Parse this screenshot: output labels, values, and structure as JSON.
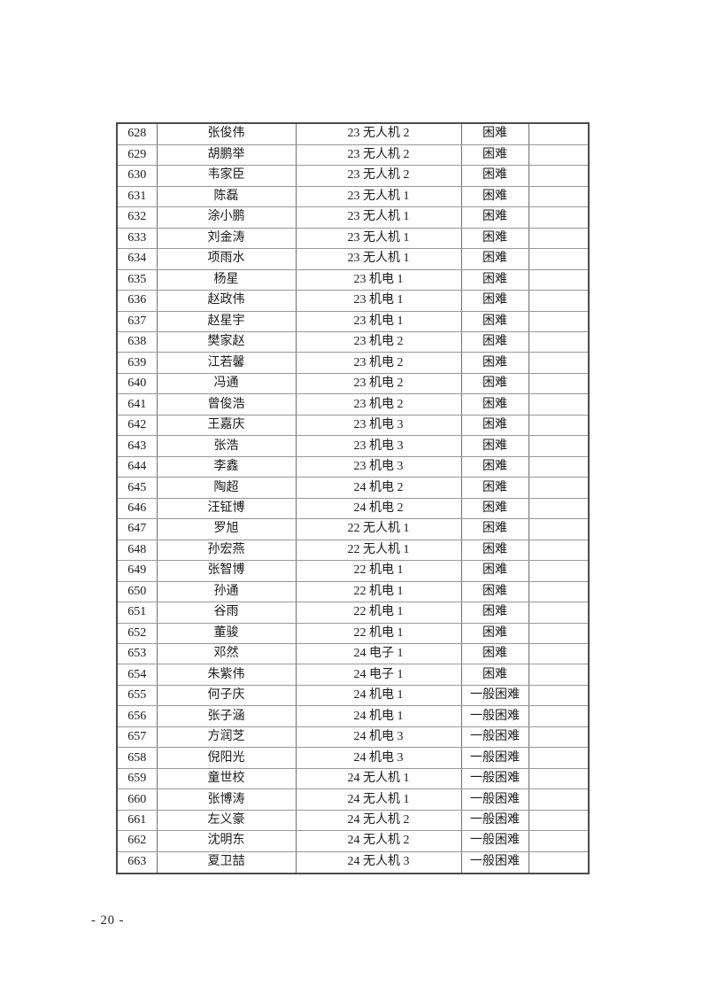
{
  "page": {
    "page_number": "- 20 -"
  },
  "table": {
    "rows": [
      {
        "no": "628",
        "name": "张俊伟",
        "class": "23 无人机 2",
        "level": "困难",
        "note": ""
      },
      {
        "no": "629",
        "name": "胡鹏举",
        "class": "23 无人机 2",
        "level": "困难",
        "note": ""
      },
      {
        "no": "630",
        "name": "韦家臣",
        "class": "23 无人机 2",
        "level": "困难",
        "note": ""
      },
      {
        "no": "631",
        "name": "陈磊",
        "class": "23 无人机 1",
        "level": "困难",
        "note": ""
      },
      {
        "no": "632",
        "name": "涂小鹏",
        "class": "23 无人机 1",
        "level": "困难",
        "note": ""
      },
      {
        "no": "633",
        "name": "刘金涛",
        "class": "23 无人机 1",
        "level": "困难",
        "note": ""
      },
      {
        "no": "634",
        "name": "项雨水",
        "class": "23 无人机 1",
        "level": "困难",
        "note": ""
      },
      {
        "no": "635",
        "name": "杨星",
        "class": "23 机电 1",
        "level": "困难",
        "note": ""
      },
      {
        "no": "636",
        "name": "赵政伟",
        "class": "23 机电 1",
        "level": "困难",
        "note": ""
      },
      {
        "no": "637",
        "name": "赵星宇",
        "class": "23 机电 1",
        "level": "困难",
        "note": ""
      },
      {
        "no": "638",
        "name": "樊家赵",
        "class": "23 机电 2",
        "level": "困难",
        "note": ""
      },
      {
        "no": "639",
        "name": "江若馨",
        "class": "23 机电 2",
        "level": "困难",
        "note": ""
      },
      {
        "no": "640",
        "name": "冯通",
        "class": "23 机电 2",
        "level": "困难",
        "note": ""
      },
      {
        "no": "641",
        "name": "曾俊浩",
        "class": "23 机电 2",
        "level": "困难",
        "note": ""
      },
      {
        "no": "642",
        "name": "王嘉庆",
        "class": "23 机电 3",
        "level": "困难",
        "note": ""
      },
      {
        "no": "643",
        "name": "张浩",
        "class": "23 机电 3",
        "level": "困难",
        "note": ""
      },
      {
        "no": "644",
        "name": "李鑫",
        "class": "23 机电 3",
        "level": "困难",
        "note": ""
      },
      {
        "no": "645",
        "name": "陶超",
        "class": "24 机电 2",
        "level": "困难",
        "note": ""
      },
      {
        "no": "646",
        "name": "汪钲博",
        "class": "24 机电 2",
        "level": "困难",
        "note": ""
      },
      {
        "no": "647",
        "name": "罗旭",
        "class": "22 无人机 1",
        "level": "困难",
        "note": ""
      },
      {
        "no": "648",
        "name": "孙宏燕",
        "class": "22 无人机 1",
        "level": "困难",
        "note": ""
      },
      {
        "no": "649",
        "name": "张智博",
        "class": "22 机电 1",
        "level": "困难",
        "note": ""
      },
      {
        "no": "650",
        "name": "孙通",
        "class": "22 机电 1",
        "level": "困难",
        "note": ""
      },
      {
        "no": "651",
        "name": "谷雨",
        "class": "22 机电 1",
        "level": "困难",
        "note": ""
      },
      {
        "no": "652",
        "name": "董骏",
        "class": "22 机电 1",
        "level": "困难",
        "note": ""
      },
      {
        "no": "653",
        "name": "邓然",
        "class": "24 电子 1",
        "level": "困难",
        "note": ""
      },
      {
        "no": "654",
        "name": "朱紫伟",
        "class": "24 电子 1",
        "level": "困难",
        "note": ""
      },
      {
        "no": "655",
        "name": "何子庆",
        "class": "24 机电 1",
        "level": "一般困难",
        "note": ""
      },
      {
        "no": "656",
        "name": "张子涵",
        "class": "24 机电 1",
        "level": "一般困难",
        "note": ""
      },
      {
        "no": "657",
        "name": "方润芝",
        "class": "24 机电 3",
        "level": "一般困难",
        "note": ""
      },
      {
        "no": "658",
        "name": "倪阳光",
        "class": "24 机电 3",
        "level": "一般困难",
        "note": ""
      },
      {
        "no": "659",
        "name": "童世校",
        "class": "24 无人机 1",
        "level": "一般困难",
        "note": ""
      },
      {
        "no": "660",
        "name": "张博涛",
        "class": "24 无人机 1",
        "level": "一般困难",
        "note": ""
      },
      {
        "no": "661",
        "name": "左义豪",
        "class": "24 无人机 2",
        "level": "一般困难",
        "note": ""
      },
      {
        "no": "662",
        "name": "沈明东",
        "class": "24 无人机 2",
        "level": "一般困难",
        "note": ""
      },
      {
        "no": "663",
        "name": "夏卫喆",
        "class": "24 无人机 3",
        "level": "一般困难",
        "note": ""
      }
    ]
  }
}
